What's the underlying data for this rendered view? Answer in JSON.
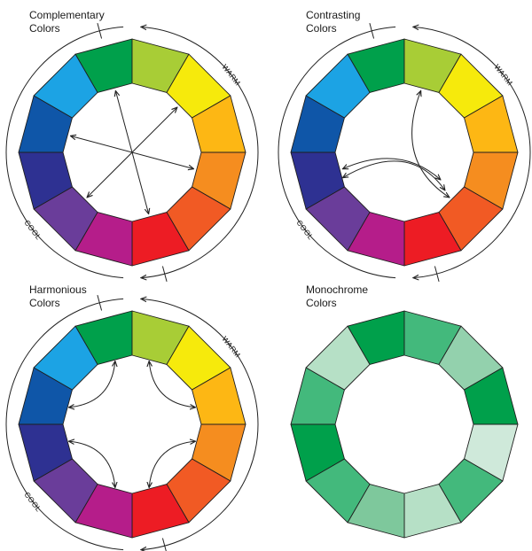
{
  "wheel_colors": [
    "#00a04b",
    "#a8cd36",
    "#f6ea0c",
    "#fdb714",
    "#f58d1f",
    "#f15a24",
    "#ed1c24",
    "#b51d8a",
    "#6a3d9a",
    "#2e3192",
    "#0f56a8",
    "#1ca3e4"
  ],
  "panels": [
    {
      "title_line1": "Complementary",
      "title_line2": "Colors",
      "warm_label": "WARM",
      "cool_label": "COOL"
    },
    {
      "title_line1": "Contrasting",
      "title_line2": "Colors",
      "warm_label": "WARM",
      "cool_label": "COOL"
    },
    {
      "title_line1": "Harmonious",
      "title_line2": "Colors",
      "warm_label": "WARM",
      "cool_label": "COOL"
    },
    {
      "title_line1": "Monochrome",
      "title_line2": "Colors"
    }
  ],
  "monochrome_colors": [
    "#00a04b",
    "#43b97c",
    "#93d1ad",
    "#00a04b",
    "#cfe9da",
    "#43b97c",
    "#b6e0c6",
    "#7ec89c",
    "#43b97c",
    "#00a04b",
    "#43b97c",
    "#b6e0c6"
  ]
}
